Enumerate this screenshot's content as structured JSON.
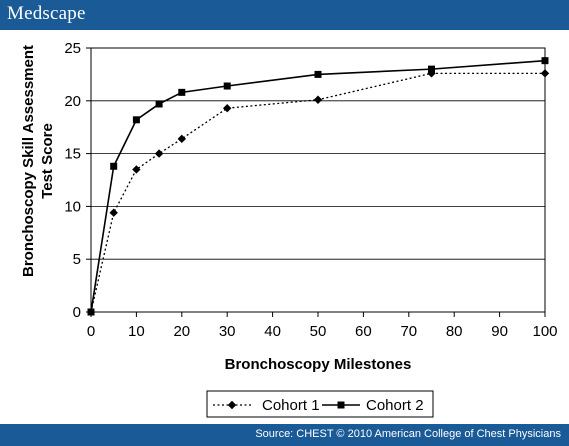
{
  "header": {
    "brand": "Medscape"
  },
  "footer": {
    "source": "Source: CHEST © 2010 American College of Chest Physicians"
  },
  "chart_data": {
    "type": "line",
    "title": "",
    "xlabel": "Bronchoscopy Milestones",
    "ylabel": "Bronchoscopy Skill Assessment Test Score",
    "ylabel_lines": [
      "Bronchoscopy Skill Assessment",
      "Test Score"
    ],
    "xlim": [
      0,
      100
    ],
    "ylim": [
      0,
      25
    ],
    "xticks": [
      0,
      10,
      20,
      30,
      40,
      50,
      60,
      70,
      80,
      90,
      100
    ],
    "yticks": [
      0,
      5,
      10,
      15,
      20,
      25
    ],
    "grid": "horizontal",
    "legend_position": "bottom",
    "series": [
      {
        "name": "Cohort 1",
        "style": "dotted",
        "marker": "diamond",
        "color": "#000000",
        "x": [
          0,
          5,
          10,
          15,
          20,
          30,
          50,
          75,
          100
        ],
        "y": [
          0,
          9.4,
          13.5,
          15.0,
          16.4,
          19.3,
          20.1,
          22.6,
          22.6
        ]
      },
      {
        "name": "Cohort 2",
        "style": "solid",
        "marker": "square",
        "color": "#000000",
        "x": [
          0,
          5,
          10,
          15,
          20,
          30,
          50,
          75,
          100
        ],
        "y": [
          0,
          13.8,
          18.2,
          19.7,
          20.8,
          21.4,
          22.5,
          23.0,
          23.8
        ]
      }
    ]
  }
}
